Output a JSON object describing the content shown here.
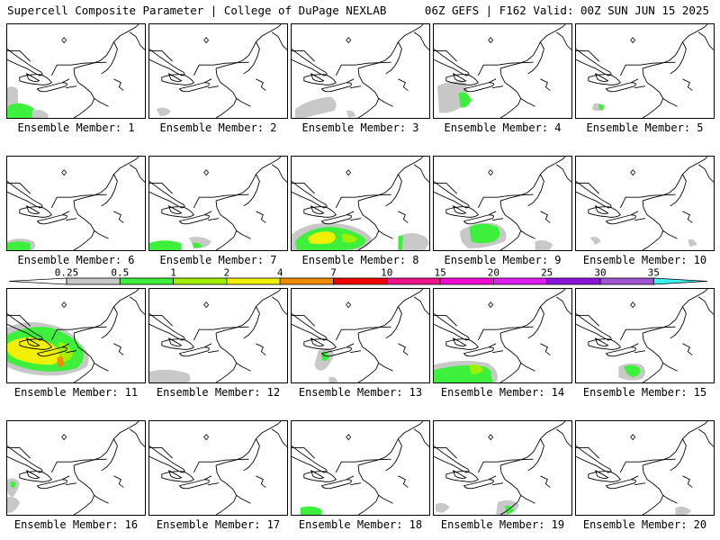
{
  "header": {
    "title_left": "Supercell Composite Parameter | College of DuPage NEXLAB",
    "title_right": "06Z GEFS | F162 Valid: 00Z SUN JUN 15 2025"
  },
  "member_label_prefix": "Ensemble Member: ",
  "members": [
    {
      "label": "Ensemble Member: 1",
      "coverage": "gray-green patches southwest"
    },
    {
      "label": "Ensemble Member: 2",
      "coverage": "small gray south"
    },
    {
      "label": "Ensemble Member: 3",
      "coverage": "gray band south"
    },
    {
      "label": "Ensemble Member: 4",
      "coverage": "gray and green west"
    },
    {
      "label": "Ensemble Member: 5",
      "coverage": "small gray south"
    },
    {
      "label": "Ensemble Member: 6",
      "coverage": "green strip southwest"
    },
    {
      "label": "Ensemble Member: 7",
      "coverage": "green strip south"
    },
    {
      "label": "Ensemble Member: 8",
      "coverage": "green-yellow band south"
    },
    {
      "label": "Ensemble Member: 9",
      "coverage": "green band south"
    },
    {
      "label": "Ensemble Member: 10",
      "coverage": "small gray south"
    },
    {
      "label": "Ensemble Member: 11",
      "coverage": "large green-yellow-orange west"
    },
    {
      "label": "Ensemble Member: 12",
      "coverage": "gray strip south"
    },
    {
      "label": "Ensemble Member: 13",
      "coverage": "gray-green west"
    },
    {
      "label": "Ensemble Member: 14",
      "coverage": "green-yellow south"
    },
    {
      "label": "Ensemble Member: 15",
      "coverage": "gray-green southeast"
    },
    {
      "label": "Ensemble Member: 16",
      "coverage": "gray-green southwest"
    },
    {
      "label": "Ensemble Member: 17",
      "coverage": "none"
    },
    {
      "label": "Ensemble Member: 18",
      "coverage": "green sliver south"
    },
    {
      "label": "Ensemble Member: 19",
      "coverage": "green-gray south"
    },
    {
      "label": "Ensemble Member: 20",
      "coverage": "small gray south"
    }
  ],
  "colorbar": {
    "tick_labels": [
      "0.25",
      "0.5",
      "1",
      "2",
      "4",
      "7",
      "10",
      "15",
      "20",
      "25",
      "30",
      "35"
    ],
    "colors": [
      "#ffffff",
      "#c8c8c8",
      "#3cf03c",
      "#a0f000",
      "#f0f000",
      "#f08c00",
      "#f00000",
      "#f0148c",
      "#f00ad2",
      "#dc1ef0",
      "#8c14dc",
      "#a055d2",
      "#3cf0f0"
    ]
  }
}
